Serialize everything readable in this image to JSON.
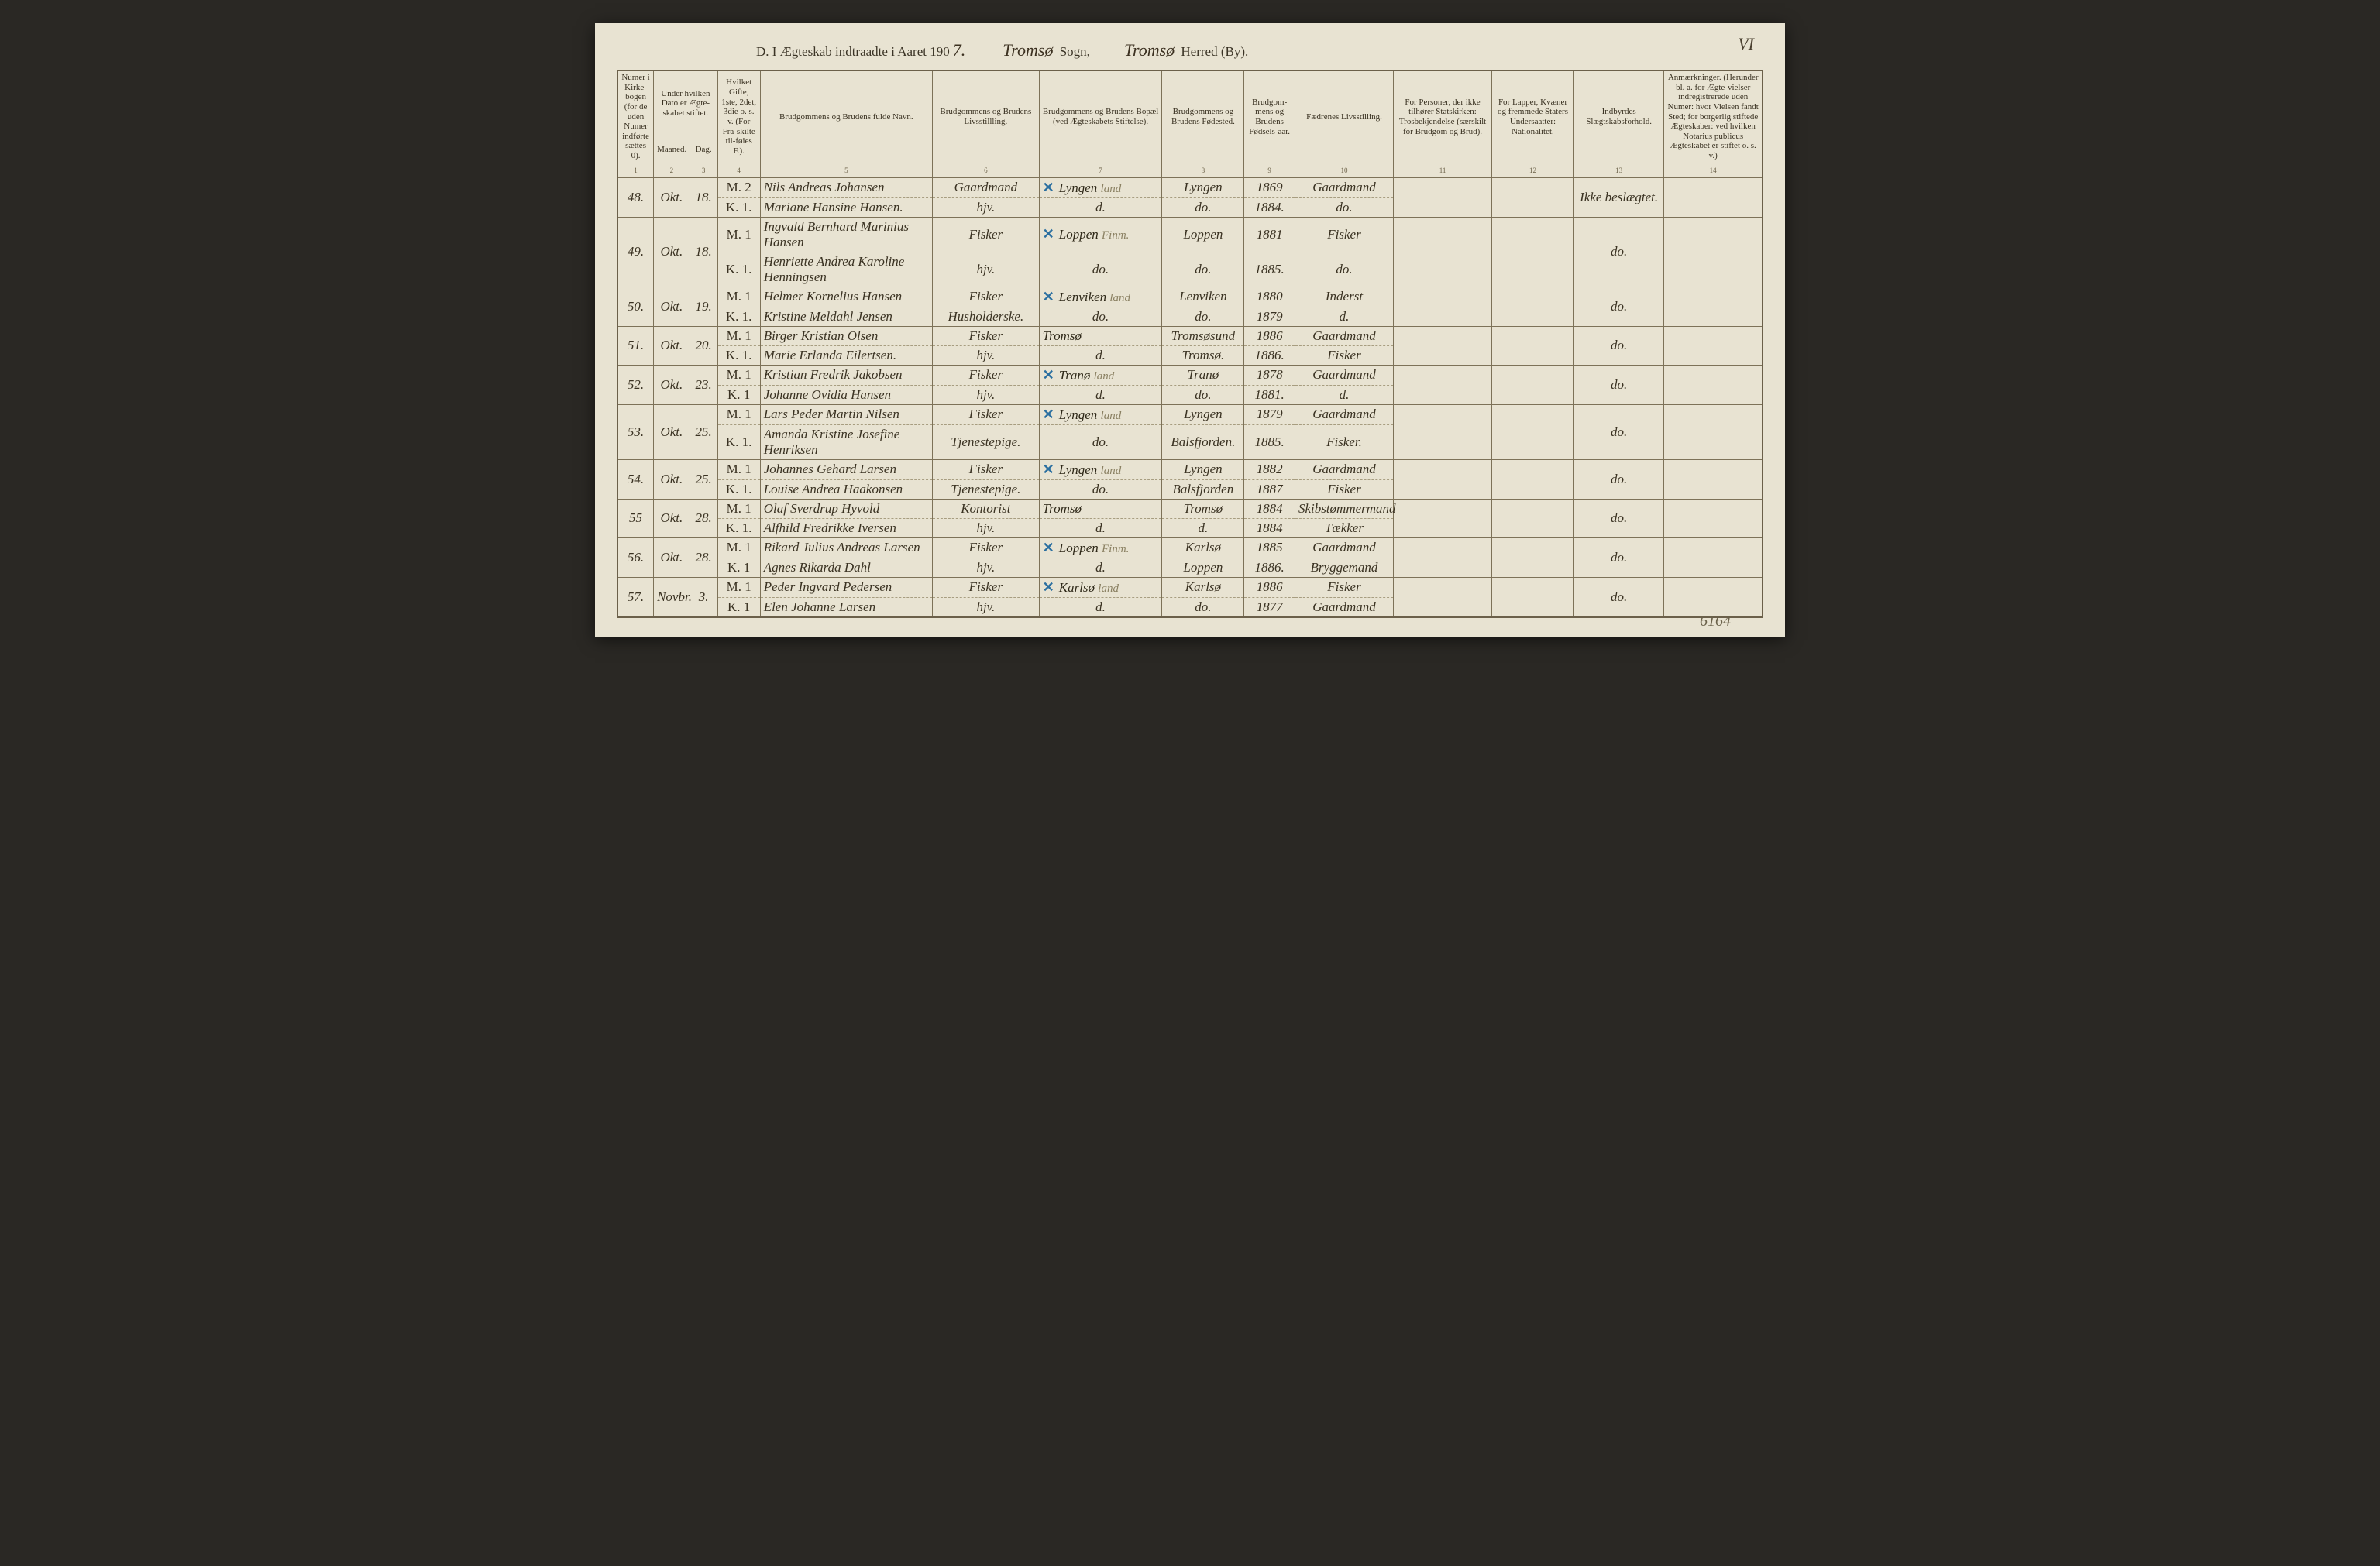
{
  "page_number_top": "VI",
  "title": {
    "prefix": "D.  I Ægteskab indtraadte i Aaret 190",
    "year_last_digit": "7.",
    "sogn_script": "Tromsø",
    "sogn_label": "Sogn,",
    "herred_script": "Tromsø",
    "herred_label": "Herred (By)."
  },
  "headers": {
    "c1": "Numer i Kirke-bogen (for de uden Numer indførte sættes 0).",
    "c2_top": "Under hvilken Dato er Ægte-skabet stiftet.",
    "c2a": "Maaned.",
    "c2b": "Dag.",
    "c4": "Hvilket Gifte, 1ste, 2det, 3die o. s. v. (For Fra-skilte til-føies F.).",
    "c5": "Brudgommens og Brudens fulde Navn.",
    "c6": "Brudgommens og Brudens Livsstillling.",
    "c7": "Brudgommens og Brudens Bopæl (ved Ægteskabets Stiftelse).",
    "c8": "Brudgommens og Brudens Fødested.",
    "c9": "Brudgom-mens og Brudens Fødsels-aar.",
    "c10": "Fædrenes Livsstilling.",
    "c11": "For Personer, der ikke tilhører Statskirken: Trosbekjendelse (særskilt for Brudgom og Brud).",
    "c12": "For Lapper, Kvæner og fremmede Staters Undersaatter: Nationalitet.",
    "c13": "Indbyrdes Slægtskabsforhold.",
    "c14": "Anmærkninger. (Herunder bl. a. for Ægte-vielser indregistrerede uden Numer: hvor Vielsen fandt Sted; for borgerlig stiftede Ægteskaber: ved hvilken Notarius publicus Ægteskabet er stiftet o. s. v.)"
  },
  "colnums": [
    "1",
    "2",
    "3",
    "4",
    "5",
    "6",
    "7",
    "8",
    "9",
    "10",
    "11",
    "12",
    "13",
    "14"
  ],
  "rows": [
    {
      "num": "48.",
      "month": "Okt.",
      "day": "18.",
      "m_gifte": "M. 2",
      "m_name": "Nils Andreas Johansen",
      "m_occ": "Gaardmand",
      "m_resid_mark": "✕",
      "m_resid": "Lyngen",
      "m_resid_note": "land",
      "m_birth": "Lyngen",
      "m_year": "1869",
      "m_father": "Gaardmand",
      "k_gifte": "K. 1.",
      "k_name": "Mariane Hansine Hansen.",
      "k_occ": "hjv.",
      "k_resid": "d.",
      "k_birth": "do.",
      "k_year": "1884.",
      "k_father": "do.",
      "c13": "Ikke beslægtet."
    },
    {
      "num": "49.",
      "month": "Okt.",
      "day": "18.",
      "m_gifte": "M. 1",
      "m_name": "Ingvald Bernhard Marinius Hansen",
      "m_occ": "Fisker",
      "m_resid_mark": "✕",
      "m_resid": "Loppen",
      "m_resid_note": "Finm.",
      "m_birth": "Loppen",
      "m_year": "1881",
      "m_father": "Fisker",
      "k_gifte": "K. 1.",
      "k_name": "Henriette Andrea Karoline Henningsen",
      "k_occ": "hjv.",
      "k_resid": "do.",
      "k_birth": "do.",
      "k_year": "1885.",
      "k_father": "do.",
      "c13": "do."
    },
    {
      "num": "50.",
      "month": "Okt.",
      "day": "19.",
      "m_gifte": "M. 1",
      "m_name": "Helmer Kornelius Hansen",
      "m_occ": "Fisker",
      "m_resid_mark": "✕",
      "m_resid": "Lenviken",
      "m_resid_note": "land",
      "m_birth": "Lenviken",
      "m_year": "1880",
      "m_father": "Inderst",
      "k_gifte": "K. 1.",
      "k_name": "Kristine Meldahl Jensen",
      "k_occ": "Husholderske.",
      "k_resid": "do.",
      "k_birth": "do.",
      "k_year": "1879",
      "k_father": "d.",
      "c13": "do."
    },
    {
      "num": "51.",
      "month": "Okt.",
      "day": "20.",
      "m_gifte": "M. 1",
      "m_name": "Birger Kristian Olsen",
      "m_occ": "Fisker",
      "m_resid_mark": "",
      "m_resid": "Tromsø",
      "m_resid_note": "",
      "m_birth": "Tromsøsund",
      "m_year": "1886",
      "m_father": "Gaardmand",
      "k_gifte": "K. 1.",
      "k_name": "Marie Erlanda Eilertsen.",
      "k_occ": "hjv.",
      "k_resid": "d.",
      "k_birth": "Tromsø.",
      "k_year": "1886.",
      "k_father": "Fisker",
      "c13": "do."
    },
    {
      "num": "52.",
      "month": "Okt.",
      "day": "23.",
      "m_gifte": "M. 1",
      "m_name": "Kristian Fredrik Jakobsen",
      "m_occ": "Fisker",
      "m_resid_mark": "✕",
      "m_resid": "Tranø",
      "m_resid_note": "land",
      "m_birth": "Tranø",
      "m_year": "1878",
      "m_father": "Gaardmand",
      "k_gifte": "K. 1",
      "k_name": "Johanne Ovidia Hansen",
      "k_occ": "hjv.",
      "k_resid": "d.",
      "k_birth": "do.",
      "k_year": "1881.",
      "k_father": "d.",
      "c13": "do."
    },
    {
      "num": "53.",
      "month": "Okt.",
      "day": "25.",
      "m_gifte": "M. 1",
      "m_name": "Lars Peder Martin Nilsen",
      "m_occ": "Fisker",
      "m_resid_mark": "✕",
      "m_resid": "Lyngen",
      "m_resid_note": "land",
      "m_birth": "Lyngen",
      "m_year": "1879",
      "m_father": "Gaardmand",
      "k_gifte": "K. 1.",
      "k_name": "Amanda Kristine Josefine Henriksen",
      "k_occ": "Tjenestepige.",
      "k_resid": "do.",
      "k_birth": "Balsfjorden.",
      "k_year": "1885.",
      "k_father": "Fisker.",
      "c13": "do."
    },
    {
      "num": "54.",
      "month": "Okt.",
      "day": "25.",
      "m_gifte": "M. 1",
      "m_name": "Johannes Gehard Larsen",
      "m_occ": "Fisker",
      "m_resid_mark": "✕",
      "m_resid": "Lyngen",
      "m_resid_note": "land",
      "m_birth": "Lyngen",
      "m_year": "1882",
      "m_father": "Gaardmand",
      "k_gifte": "K. 1.",
      "k_name": "Louise Andrea Haakonsen",
      "k_occ": "Tjenestepige.",
      "k_resid": "do.",
      "k_birth": "Balsfjorden",
      "k_year": "1887",
      "k_father": "Fisker",
      "c13": "do."
    },
    {
      "num": "55",
      "month": "Okt.",
      "day": "28.",
      "m_gifte": "M. 1",
      "m_name": "Olaf Sverdrup Hyvold",
      "m_occ": "Kontorist",
      "m_resid_mark": "",
      "m_resid": "Tromsø",
      "m_resid_note": "",
      "m_birth": "Tromsø",
      "m_year": "1884",
      "m_father": "Skibstømmermand",
      "k_gifte": "K. 1.",
      "k_name": "Alfhild Fredrikke Iversen",
      "k_occ": "hjv.",
      "k_resid": "d.",
      "k_birth": "d.",
      "k_year": "1884",
      "k_father": "Tækker",
      "c13": "do."
    },
    {
      "num": "56.",
      "month": "Okt.",
      "day": "28.",
      "m_gifte": "M. 1",
      "m_name": "Rikard Julius Andreas Larsen",
      "m_occ": "Fisker",
      "m_resid_mark": "✕",
      "m_resid": "Loppen",
      "m_resid_note": "Finm.",
      "m_birth": "Karlsø",
      "m_year": "1885",
      "m_father": "Gaardmand",
      "k_gifte": "K. 1",
      "k_name": "Agnes Rikarda Dahl",
      "k_occ": "hjv.",
      "k_resid": "d.",
      "k_birth": "Loppen",
      "k_year": "1886.",
      "k_father": "Bryggemand",
      "c13": "do."
    },
    {
      "num": "57.",
      "month": "Novbr.",
      "day": "3.",
      "m_gifte": "M. 1",
      "m_name": "Peder Ingvard Pedersen",
      "m_occ": "Fisker",
      "m_resid_mark": "✕",
      "m_resid": "Karlsø",
      "m_resid_note": "land",
      "m_birth": "Karlsø",
      "m_year": "1886",
      "m_father": "Fisker",
      "k_gifte": "K. 1",
      "k_name": "Elen Johanne Larsen",
      "k_occ": "hjv.",
      "k_resid": "d.",
      "k_birth": "do.",
      "k_year": "1877",
      "k_father": "Gaardmand",
      "c13": "do."
    }
  ],
  "footer_mark": "6164"
}
